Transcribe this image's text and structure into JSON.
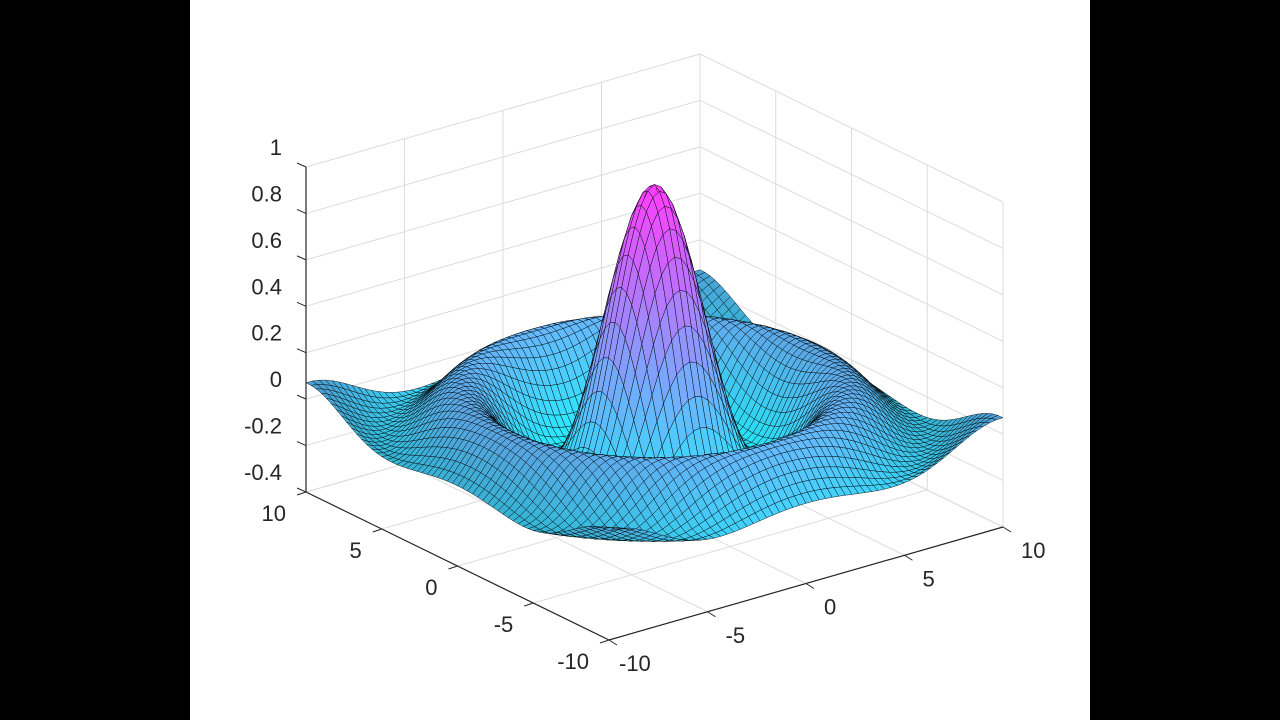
{
  "chart_data": {
    "type": "surface",
    "title": "",
    "function": "z = sin(r)/r, r = sqrt(x^2 + y^2)",
    "xlabel": "",
    "ylabel": "",
    "zlabel": "",
    "x_range": [
      -10,
      10
    ],
    "y_range": [
      -10,
      10
    ],
    "z_range": [
      -0.4,
      1
    ],
    "x_ticks": [
      "-10",
      "-5",
      "0",
      "5",
      "10"
    ],
    "y_ticks": [
      "10",
      "5",
      "0",
      "-5",
      "-10"
    ],
    "z_ticks": [
      "1",
      "0.8",
      "0.6",
      "0.4",
      "0.2",
      "0",
      "-0.2",
      "-0.4"
    ],
    "z_tick_values": [
      1,
      0.8,
      0.6,
      0.4,
      0.2,
      0,
      -0.2,
      -0.4
    ],
    "grid": true,
    "mesh_resolution": 60,
    "colormap": "cool",
    "colormap_low": "#00ffff",
    "colormap_high": "#ff00ff",
    "edge_color": "#000000",
    "peak_value": 1,
    "view": "3D default (az -37.5, el 30)"
  },
  "colors": {
    "background": "#ffffff",
    "letterbox": "#000000",
    "axis_line": "#262626",
    "grid_line": "#dcdcdc",
    "text": "#262626"
  }
}
